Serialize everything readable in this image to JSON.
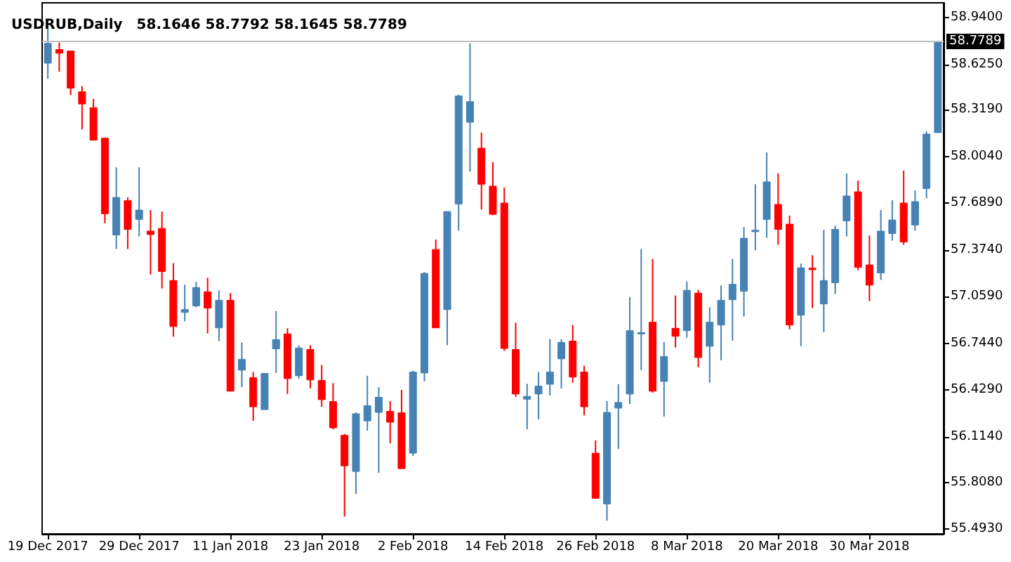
{
  "chart_data": {
    "type": "candlestick",
    "title": "USDRUB,Daily",
    "subtitle": "58.1646 58.7792 58.1645 58.7789",
    "categories": [
      "19 Dec 2017",
      null,
      null,
      null,
      null,
      null,
      null,
      null,
      "29 Dec 2017",
      null,
      null,
      null,
      null,
      null,
      null,
      null,
      "11 Jan 2018",
      null,
      null,
      null,
      null,
      null,
      null,
      null,
      "23 Jan 2018",
      null,
      null,
      null,
      null,
      null,
      null,
      null,
      "2 Feb 2018",
      null,
      null,
      null,
      null,
      null,
      null,
      null,
      "14 Feb 2018",
      null,
      null,
      null,
      null,
      null,
      null,
      null,
      "26 Feb 2018",
      null,
      null,
      null,
      null,
      null,
      null,
      null,
      "8 Mar 2018",
      null,
      null,
      null,
      null,
      null,
      null,
      null,
      "20 Mar 2018",
      null,
      null,
      null,
      null,
      null,
      null,
      null,
      "30 Mar 2018",
      null,
      null,
      null,
      null,
      null,
      null
    ],
    "ohlc": [
      [
        58.633,
        58.87,
        58.529,
        58.766
      ],
      [
        58.725,
        58.772,
        58.576,
        58.7
      ],
      [
        58.715,
        58.715,
        58.418,
        58.465
      ],
      [
        58.44,
        58.478,
        58.187,
        58.358
      ],
      [
        58.333,
        58.393,
        58.114,
        58.114
      ],
      [
        58.127,
        58.133,
        57.554,
        57.618
      ],
      [
        57.475,
        57.931,
        57.38,
        57.728
      ],
      [
        57.706,
        57.728,
        57.38,
        57.513
      ],
      [
        57.58,
        57.931,
        57.466,
        57.643
      ],
      [
        57.501,
        57.643,
        57.209,
        57.478
      ],
      [
        57.519,
        57.633,
        57.115,
        57.229
      ],
      [
        57.168,
        57.285,
        56.789,
        56.858
      ],
      [
        56.953,
        57.14,
        56.893,
        56.972
      ],
      [
        56.997,
        57.159,
        56.988,
        57.121
      ],
      [
        57.092,
        57.187,
        56.811,
        56.982
      ],
      [
        56.849,
        57.102,
        56.76,
        57.035
      ],
      [
        57.035,
        57.083,
        56.422,
        56.422
      ],
      [
        56.564,
        56.751,
        56.45,
        56.637
      ],
      [
        56.513,
        56.551,
        56.222,
        56.317
      ],
      [
        56.298,
        56.545,
        56.298,
        56.542
      ],
      [
        56.707,
        56.963,
        56.545,
        56.77
      ],
      [
        56.808,
        56.846,
        56.403,
        56.507
      ],
      [
        56.526,
        56.732,
        56.507,
        56.713
      ],
      [
        56.703,
        56.732,
        56.441,
        56.498
      ],
      [
        56.494,
        56.599,
        56.317,
        56.365
      ],
      [
        56.352,
        56.476,
        56.165,
        56.175
      ],
      [
        56.124,
        56.134,
        55.577,
        55.919
      ],
      [
        55.881,
        56.279,
        55.729,
        56.27
      ],
      [
        56.222,
        56.526,
        56.156,
        56.324
      ],
      [
        56.279,
        56.45,
        55.871,
        56.381
      ],
      [
        56.286,
        56.355,
        56.071,
        56.213
      ],
      [
        56.276,
        56.431,
        55.9,
        55.9
      ],
      [
        56.004,
        56.561,
        55.985,
        56.551
      ],
      [
        56.545,
        57.225,
        56.488,
        57.216
      ],
      [
        57.377,
        57.444,
        56.849,
        56.849
      ],
      [
        56.972,
        57.633,
        56.732,
        57.633
      ],
      [
        57.684,
        58.421,
        57.504,
        58.412
      ],
      [
        58.235,
        58.766,
        57.902,
        58.374
      ],
      [
        58.06,
        58.165,
        57.646,
        57.817
      ],
      [
        57.804,
        57.966,
        57.608,
        57.614
      ],
      [
        57.69,
        57.795,
        56.694,
        56.71
      ],
      [
        56.703,
        56.884,
        56.384,
        56.403
      ],
      [
        56.368,
        56.472,
        56.165,
        56.387
      ],
      [
        56.403,
        56.551,
        56.232,
        56.457
      ],
      [
        56.469,
        56.773,
        56.393,
        56.551
      ],
      [
        56.64,
        56.773,
        56.441,
        56.751
      ],
      [
        56.76,
        56.868,
        56.479,
        56.517
      ],
      [
        56.551,
        56.593,
        56.26,
        56.317
      ],
      [
        56.004,
        56.09,
        55.7,
        55.7
      ],
      [
        55.662,
        56.355,
        55.549,
        56.279
      ],
      [
        56.308,
        56.469,
        56.033,
        56.346
      ],
      [
        56.403,
        57.058,
        56.336,
        56.83
      ],
      [
        56.814,
        57.38,
        56.564,
        56.817
      ],
      [
        56.887,
        57.314,
        56.412,
        56.422
      ],
      [
        56.488,
        56.754,
        56.251,
        56.656
      ],
      [
        56.846,
        57.067,
        56.716,
        56.792
      ],
      [
        56.83,
        57.162,
        56.782,
        57.102
      ],
      [
        57.083,
        57.105,
        56.583,
        56.649
      ],
      [
        56.725,
        56.988,
        56.479,
        56.887
      ],
      [
        56.868,
        57.134,
        56.631,
        57.035
      ],
      [
        57.039,
        57.314,
        56.763,
        57.143
      ],
      [
        57.096,
        57.529,
        56.925,
        57.453
      ],
      [
        57.497,
        57.817,
        57.371,
        57.507
      ],
      [
        57.58,
        58.032,
        57.456,
        57.833
      ],
      [
        57.681,
        57.89,
        57.409,
        57.513
      ],
      [
        57.548,
        57.605,
        56.839,
        56.868
      ],
      [
        56.934,
        57.282,
        56.725,
        57.254
      ],
      [
        57.251,
        57.339,
        56.982,
        57.247
      ],
      [
        57.01,
        57.51,
        56.82,
        57.168
      ],
      [
        57.153,
        57.538,
        57.077,
        57.513
      ],
      [
        57.57,
        57.89,
        57.466,
        57.738
      ],
      [
        57.766,
        57.842,
        57.238,
        57.257
      ],
      [
        57.273,
        57.472,
        57.029,
        57.137
      ],
      [
        57.219,
        57.643,
        57.172,
        57.501
      ],
      [
        57.485,
        57.709,
        57.437,
        57.576
      ],
      [
        57.69,
        57.909,
        57.409,
        57.428
      ],
      [
        57.542,
        57.776,
        57.504,
        57.7
      ],
      [
        57.788,
        58.174,
        57.722,
        58.155
      ],
      [
        58.1646,
        58.7792,
        58.1645,
        58.7789
      ]
    ],
    "colors": [
      "#4682b4",
      "#ff0000",
      "#ff0000",
      "#ff0000",
      "#ff0000",
      "#ff0000",
      "#4682b4",
      "#ff0000",
      "#4682b4",
      "#ff0000",
      "#ff0000",
      "#ff0000",
      "#4682b4",
      "#4682b4",
      "#ff0000",
      "#4682b4",
      "#ff0000",
      "#4682b4",
      "#ff0000",
      "#4682b4",
      "#4682b4",
      "#ff0000",
      "#4682b4",
      "#ff0000",
      "#ff0000",
      "#ff0000",
      "#ff0000",
      "#4682b4",
      "#4682b4",
      "#4682b4",
      "#ff0000",
      "#ff0000",
      "#4682b4",
      "#4682b4",
      "#ff0000",
      "#4682b4",
      "#4682b4",
      "#4682b4",
      "#ff0000",
      "#ff0000",
      "#ff0000",
      "#ff0000",
      "#4682b4",
      "#4682b4",
      "#4682b4",
      "#4682b4",
      "#ff0000",
      "#ff0000",
      "#ff0000",
      "#4682b4",
      "#4682b4",
      "#4682b4",
      "#4682b4",
      "#ff0000",
      "#4682b4",
      "#ff0000",
      "#4682b4",
      "#ff0000",
      "#4682b4",
      "#4682b4",
      "#4682b4",
      "#4682b4",
      "#4682b4",
      "#4682b4",
      "#ff0000",
      "#ff0000",
      "#4682b4",
      "#ff0000",
      "#4682b4",
      "#4682b4",
      "#4682b4",
      "#ff0000",
      "#ff0000",
      "#4682b4",
      "#4682b4",
      "#ff0000",
      "#4682b4",
      "#4682b4",
      "#4682b4"
    ],
    "ylim": [
      55.46,
      59.04
    ],
    "yticks": [
      {
        "value": 55.493,
        "label": "55.4930"
      },
      {
        "value": 55.808,
        "label": "55.8080"
      },
      {
        "value": 56.114,
        "label": "56.1140"
      },
      {
        "value": 56.429,
        "label": "56.4290"
      },
      {
        "value": 56.744,
        "label": "56.7440"
      },
      {
        "value": 57.059,
        "label": "57.0590"
      },
      {
        "value": 57.374,
        "label": "57.3740"
      },
      {
        "value": 57.689,
        "label": "57.6890"
      },
      {
        "value": 58.004,
        "label": "58.0040"
      },
      {
        "value": 58.319,
        "label": "58.3190"
      },
      {
        "value": 58.625,
        "label": "58.6250"
      },
      {
        "value": 58.94,
        "label": "58.9400"
      }
    ],
    "ref_lines": [
      {
        "axis": "y",
        "value": 58.7789,
        "label": "58.7789",
        "color": "#c0c0c0"
      }
    ],
    "grid": false
  }
}
